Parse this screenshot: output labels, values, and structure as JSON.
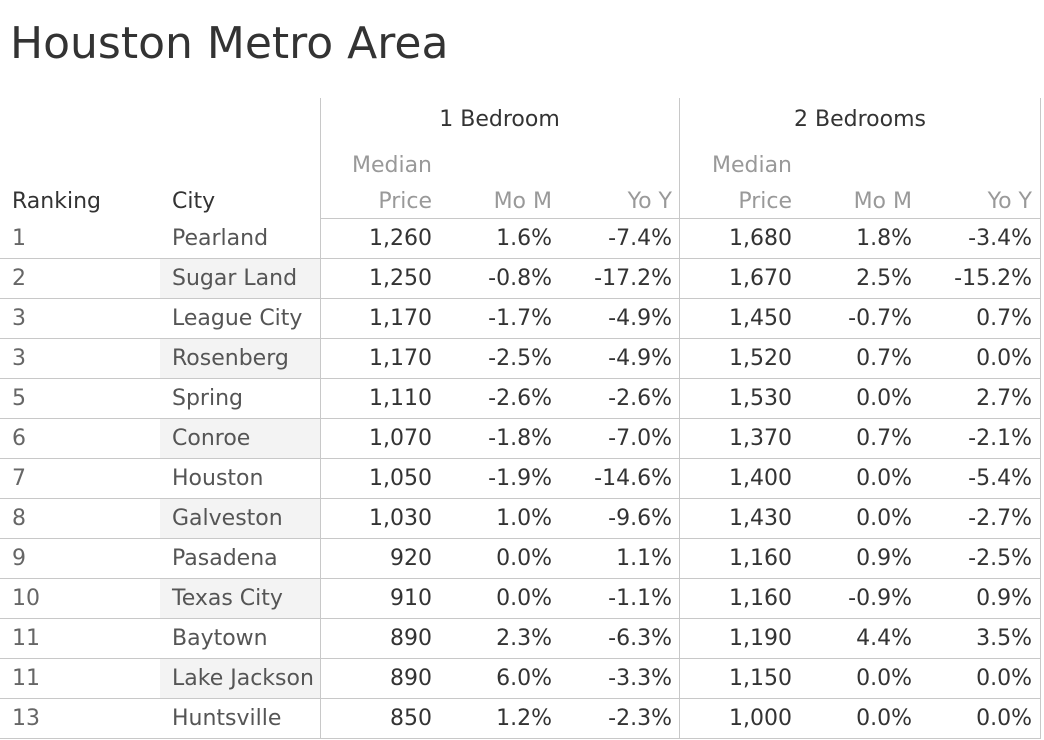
{
  "title": "Houston Metro Area",
  "groups": {
    "one_bedroom": "1 Bedroom",
    "two_bedrooms": "2 Bedrooms"
  },
  "headers": {
    "ranking": "Ranking",
    "city": "City",
    "median_line1": "Median",
    "median_line2": "Price",
    "mom": "Mo M",
    "yoy": "Yo Y"
  },
  "colors": {
    "text": "#333333",
    "header_muted": "#999999",
    "gridline": "#c8c8c8",
    "city_band": "#f3f3f3"
  },
  "chart_data": {
    "type": "table",
    "title": "Houston Metro Area",
    "columns": [
      "Ranking",
      "City",
      "1 Bedroom Median Price",
      "1 Bedroom Mo M",
      "1 Bedroom Yo Y",
      "2 Bedrooms Median Price",
      "2 Bedrooms Mo M",
      "2 Bedrooms Yo Y"
    ],
    "rows": [
      {
        "rank": "1",
        "city": "Pearland",
        "b1_price": "1,260",
        "b1_mom": "1.6%",
        "b1_yoy": "-7.4%",
        "b2_price": "1,680",
        "b2_mom": "1.8%",
        "b2_yoy": "-3.4%"
      },
      {
        "rank": "2",
        "city": "Sugar Land",
        "b1_price": "1,250",
        "b1_mom": "-0.8%",
        "b1_yoy": "-17.2%",
        "b2_price": "1,670",
        "b2_mom": "2.5%",
        "b2_yoy": "-15.2%"
      },
      {
        "rank": "3",
        "city": "League City",
        "b1_price": "1,170",
        "b1_mom": "-1.7%",
        "b1_yoy": "-4.9%",
        "b2_price": "1,450",
        "b2_mom": "-0.7%",
        "b2_yoy": "0.7%"
      },
      {
        "rank": "3",
        "city": "Rosenberg",
        "b1_price": "1,170",
        "b1_mom": "-2.5%",
        "b1_yoy": "-4.9%",
        "b2_price": "1,520",
        "b2_mom": "0.7%",
        "b2_yoy": "0.0%"
      },
      {
        "rank": "5",
        "city": "Spring",
        "b1_price": "1,110",
        "b1_mom": "-2.6%",
        "b1_yoy": "-2.6%",
        "b2_price": "1,530",
        "b2_mom": "0.0%",
        "b2_yoy": "2.7%"
      },
      {
        "rank": "6",
        "city": "Conroe",
        "b1_price": "1,070",
        "b1_mom": "-1.8%",
        "b1_yoy": "-7.0%",
        "b2_price": "1,370",
        "b2_mom": "0.7%",
        "b2_yoy": "-2.1%"
      },
      {
        "rank": "7",
        "city": "Houston",
        "b1_price": "1,050",
        "b1_mom": "-1.9%",
        "b1_yoy": "-14.6%",
        "b2_price": "1,400",
        "b2_mom": "0.0%",
        "b2_yoy": "-5.4%"
      },
      {
        "rank": "8",
        "city": "Galveston",
        "b1_price": "1,030",
        "b1_mom": "1.0%",
        "b1_yoy": "-9.6%",
        "b2_price": "1,430",
        "b2_mom": "0.0%",
        "b2_yoy": "-2.7%"
      },
      {
        "rank": "9",
        "city": "Pasadena",
        "b1_price": "920",
        "b1_mom": "0.0%",
        "b1_yoy": "1.1%",
        "b2_price": "1,160",
        "b2_mom": "0.9%",
        "b2_yoy": "-2.5%"
      },
      {
        "rank": "10",
        "city": "Texas City",
        "b1_price": "910",
        "b1_mom": "0.0%",
        "b1_yoy": "-1.1%",
        "b2_price": "1,160",
        "b2_mom": "-0.9%",
        "b2_yoy": "0.9%"
      },
      {
        "rank": "11",
        "city": "Baytown",
        "b1_price": "890",
        "b1_mom": "2.3%",
        "b1_yoy": "-6.3%",
        "b2_price": "1,190",
        "b2_mom": "4.4%",
        "b2_yoy": "3.5%"
      },
      {
        "rank": "11",
        "city": "Lake Jackson",
        "b1_price": "890",
        "b1_mom": "6.0%",
        "b1_yoy": "-3.3%",
        "b2_price": "1,150",
        "b2_mom": "0.0%",
        "b2_yoy": "0.0%"
      },
      {
        "rank": "13",
        "city": "Huntsville",
        "b1_price": "850",
        "b1_mom": "1.2%",
        "b1_yoy": "-2.3%",
        "b2_price": "1,000",
        "b2_mom": "0.0%",
        "b2_yoy": "0.0%"
      }
    ]
  }
}
